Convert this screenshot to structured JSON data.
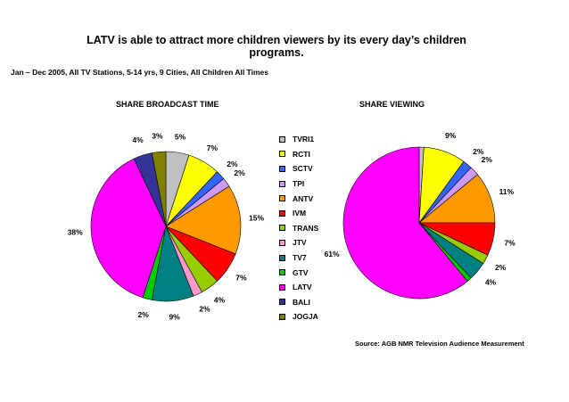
{
  "title": "LATV is able to attract more children viewers by its every day’s children programs.",
  "subtitle": "Jan – Dec 2005, All TV Stations, 5-14 yrs, 9 Cities, All Children All Times",
  "source": "Source: AGB NMR Television Audience Measurement",
  "chart_data": [
    {
      "type": "pie",
      "title": "SHARE BROADCAST TIME",
      "categories": [
        "TVRI1",
        "RCTI",
        "SCTV",
        "TPI",
        "ANTV",
        "IVM",
        "TRANS",
        "JTV",
        "TV7",
        "GTV",
        "LATV",
        "BALI",
        "JOGJA"
      ],
      "values": [
        5,
        7,
        2,
        2,
        15,
        7,
        4,
        2,
        9,
        2,
        38,
        4,
        3
      ],
      "labels": [
        "5%",
        "7%",
        "2%",
        "2%",
        "15%",
        "7%",
        "4%",
        "2%",
        "9%",
        "2%",
        "38%",
        "4%",
        "3%"
      ]
    },
    {
      "type": "pie",
      "title": "SHARE VIEWING",
      "categories": [
        "TVRI1",
        "RCTI",
        "SCTV",
        "TPI",
        "ANTV",
        "IVM",
        "TRANS",
        "JTV",
        "TV7",
        "GTV",
        "LATV",
        "BALI",
        "JOGJA"
      ],
      "values": [
        1,
        9,
        2,
        2,
        11,
        7,
        2,
        0,
        4,
        1,
        61,
        0,
        0
      ],
      "labels": [
        "",
        "9%",
        "2%",
        "2%",
        "11%",
        "7%",
        "2%",
        "",
        "4%",
        "",
        "61%",
        "",
        ""
      ]
    }
  ],
  "legend": {
    "items": [
      {
        "label": "TVRI1",
        "color": "#c0c0c0"
      },
      {
        "label": "RCTI",
        "color": "#ffff00"
      },
      {
        "label": "SCTV",
        "color": "#3366ff"
      },
      {
        "label": "TPI",
        "color": "#cc99ff"
      },
      {
        "label": "ANTV",
        "color": "#ff9900"
      },
      {
        "label": "IVM",
        "color": "#ff0000"
      },
      {
        "label": "TRANS",
        "color": "#99cc00"
      },
      {
        "label": "JTV",
        "color": "#ff99cc"
      },
      {
        "label": "TV7",
        "color": "#008080"
      },
      {
        "label": "GTV",
        "color": "#00cc00"
      },
      {
        "label": "LATV",
        "color": "#ff00ff"
      },
      {
        "label": "BALI",
        "color": "#333399"
      },
      {
        "label": "JOGJA",
        "color": "#808000"
      }
    ]
  }
}
